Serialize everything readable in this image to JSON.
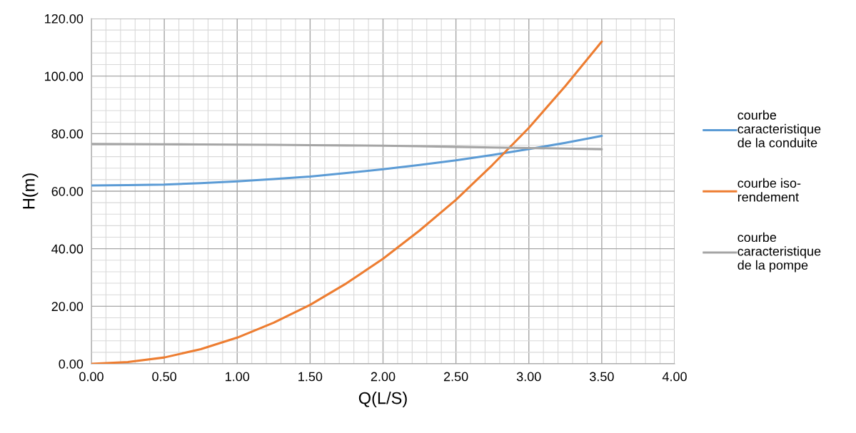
{
  "chart_data": {
    "type": "line",
    "xlabel": "Q(L/S)",
    "ylabel": "H(m)",
    "xlim": [
      0,
      4
    ],
    "ylim": [
      0,
      120
    ],
    "xticks": [
      {
        "value": 0,
        "label": "0.00"
      },
      {
        "value": 0.5,
        "label": "0.50"
      },
      {
        "value": 1,
        "label": "1.00"
      },
      {
        "value": 1.5,
        "label": "1.50"
      },
      {
        "value": 2,
        "label": "2.00"
      },
      {
        "value": 2.5,
        "label": "2.50"
      },
      {
        "value": 3,
        "label": "3.00"
      },
      {
        "value": 3.5,
        "label": "3.50"
      },
      {
        "value": 4,
        "label": "4.00"
      }
    ],
    "yticks": [
      {
        "value": 0,
        "label": "0.00"
      },
      {
        "value": 20,
        "label": "20.00"
      },
      {
        "value": 40,
        "label": "40.00"
      },
      {
        "value": 60,
        "label": "60.00"
      },
      {
        "value": 80,
        "label": "80.00"
      },
      {
        "value": 100,
        "label": "100.00"
      },
      {
        "value": 120,
        "label": "120.00"
      }
    ],
    "grid": true,
    "legend": "right",
    "marker": "none",
    "line_style": "solid",
    "x": [
      0,
      0.25,
      0.5,
      0.75,
      1.0,
      1.25,
      1.5,
      1.75,
      2.0,
      2.25,
      2.5,
      2.75,
      3.0,
      3.25,
      3.5
    ],
    "series": [
      {
        "name": "courbe caracteristique de la conduite",
        "color": "#5b9bd5",
        "values": [
          62.0,
          62.1,
          62.3,
          62.8,
          63.4,
          64.2,
          65.1,
          66.3,
          67.6,
          69.1,
          70.7,
          72.6,
          74.6,
          76.8,
          79.2
        ]
      },
      {
        "name": "courbe iso-rendement",
        "color": "#ed7d31",
        "values": [
          0,
          0.6,
          2.2,
          5.1,
          9.1,
          14.3,
          20.5,
          28.0,
          36.5,
          46.3,
          57.0,
          69.1,
          82.0,
          96.5,
          112.0
        ]
      },
      {
        "name": "courbe caracteristique de la pompe",
        "color": "#a5a5a5",
        "values": [
          76.4,
          76.35,
          76.3,
          76.25,
          76.2,
          76.1,
          76.0,
          75.9,
          75.8,
          75.6,
          75.4,
          75.2,
          75.0,
          74.8,
          74.6
        ]
      }
    ]
  }
}
